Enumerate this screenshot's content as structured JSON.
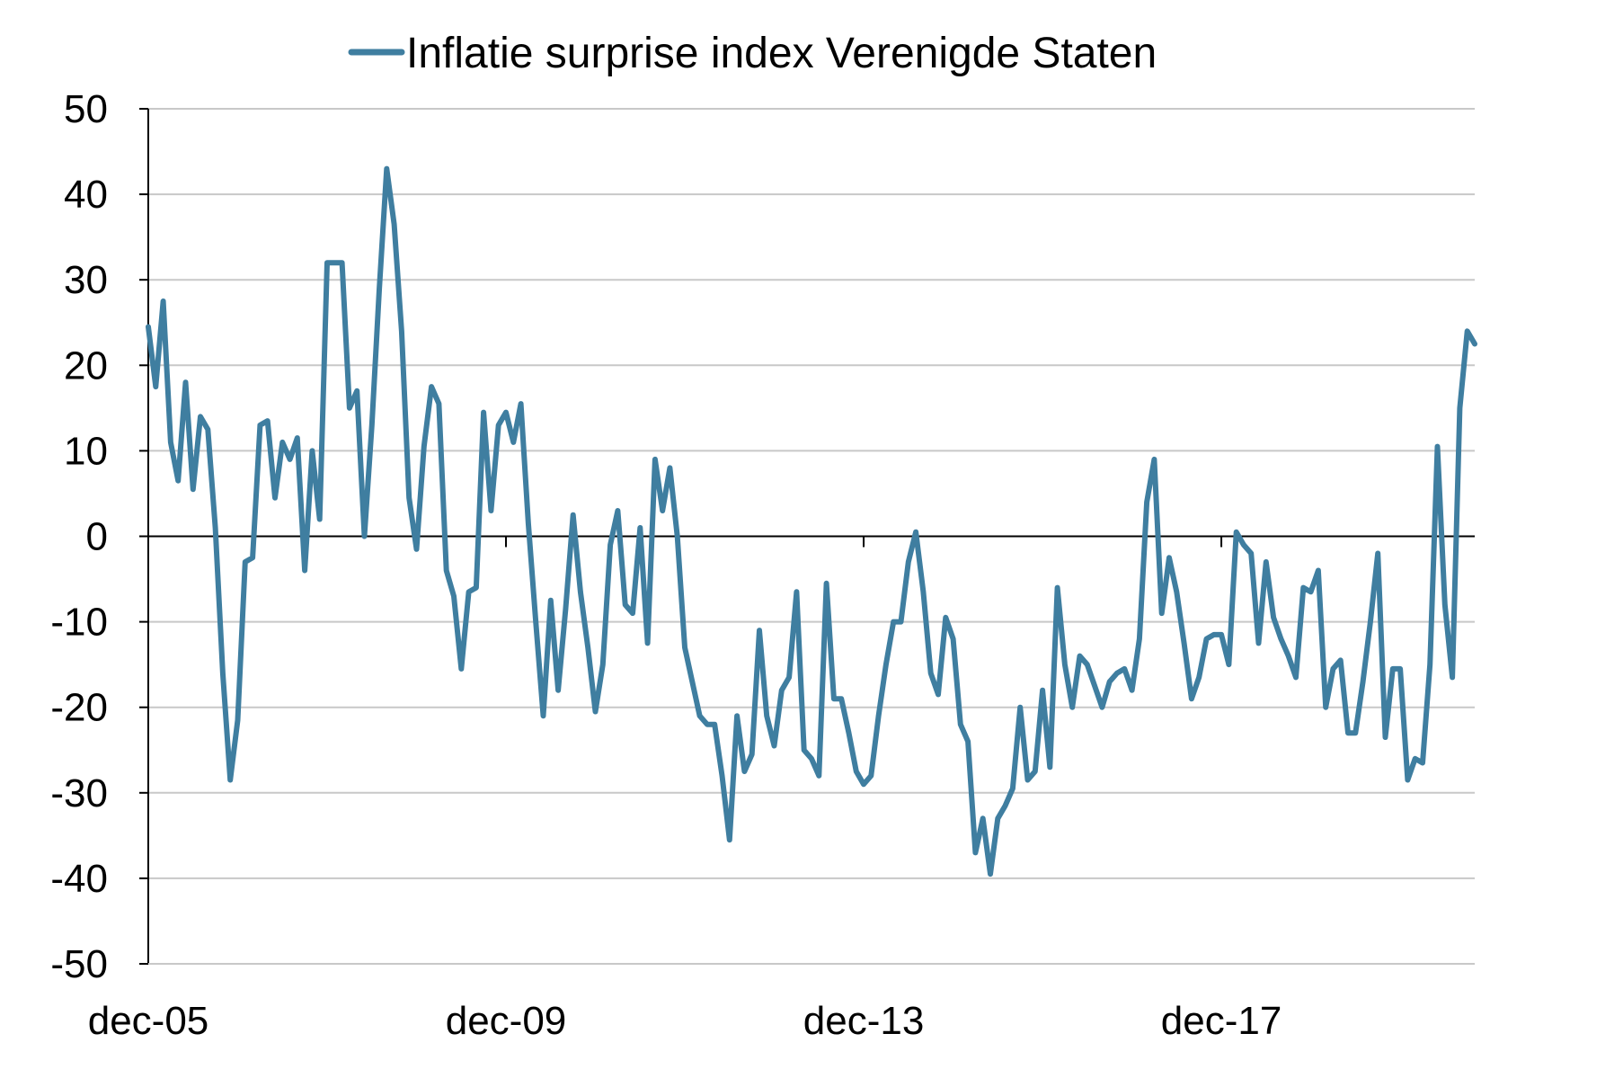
{
  "chart_data": {
    "type": "line",
    "title": "",
    "xlabel": "",
    "ylabel": "",
    "ylim": [
      -50,
      50
    ],
    "y_ticks": [
      "50",
      "40",
      "30",
      "20",
      "10",
      "0",
      "-10",
      "-20",
      "-30",
      "-40",
      "-50"
    ],
    "x_ticks": [
      "dec-05",
      "dec-09",
      "dec-13",
      "dec-17"
    ],
    "grid": true,
    "legend_position": "top-center",
    "series_color": "#3f7ea0",
    "grid_color": "#c8c8c8",
    "series": [
      {
        "name": "Inflatie surprise index Verenigde Staten",
        "values": [
          24.5,
          17.5,
          27.5,
          11,
          6.5,
          18,
          5.5,
          14,
          12.5,
          1,
          -16,
          -28.5,
          -21.5,
          -3,
          -2.5,
          13,
          13.5,
          4.5,
          11,
          9,
          11.5,
          -4,
          10,
          2,
          32,
          32,
          32,
          15,
          17,
          0,
          13,
          29,
          43,
          36.5,
          24,
          4.5,
          -1.5,
          10.5,
          17.5,
          15.5,
          -4,
          -7,
          -15.5,
          -6.5,
          -6,
          14.5,
          3,
          13,
          14.5,
          11,
          15.5,
          1.5,
          -10,
          -21,
          -7.5,
          -18,
          -8.5,
          2.5,
          -6.5,
          -13,
          -20.5,
          -15,
          -1,
          3,
          -8,
          -9,
          1,
          -12.5,
          9,
          3,
          8,
          0,
          -13,
          -17,
          -21,
          -22,
          -22,
          -28,
          -35.5,
          -21,
          -27.5,
          -25.5,
          -11,
          -21,
          -24.5,
          -18,
          -16.5,
          -6.5,
          -25,
          -26,
          -28,
          -5.5,
          -19,
          -19,
          -23,
          -27.5,
          -29,
          -28,
          -21,
          -15,
          -10,
          -10,
          -3,
          0.5,
          -6.5,
          -16,
          -18.5,
          -9.5,
          -12,
          -22,
          -24,
          -37,
          -33,
          -39.5,
          -33,
          -31.5,
          -29.5,
          -20,
          -28.5,
          -27.5,
          -18,
          -27,
          -6,
          -15,
          -20,
          -14,
          -15,
          -17.5,
          -20,
          -17,
          -16,
          -15.5,
          -18,
          -12,
          4,
          9,
          -9,
          -2.5,
          -6.5,
          -12.5,
          -19,
          -16.5,
          -12,
          -11.5,
          -11.5,
          -15,
          0.5,
          -1,
          -2,
          -12.5,
          -3,
          -9.5,
          -12,
          -14,
          -16.5,
          -6,
          -6.5,
          -4,
          -20,
          -15.5,
          -14.5,
          -23,
          -23,
          -17,
          -10,
          -2,
          -23.5,
          -15.5,
          -15.5,
          -28.5,
          -26,
          -26.5,
          -15,
          10.5,
          -8,
          -16.5,
          15,
          24,
          22.5
        ]
      }
    ]
  }
}
